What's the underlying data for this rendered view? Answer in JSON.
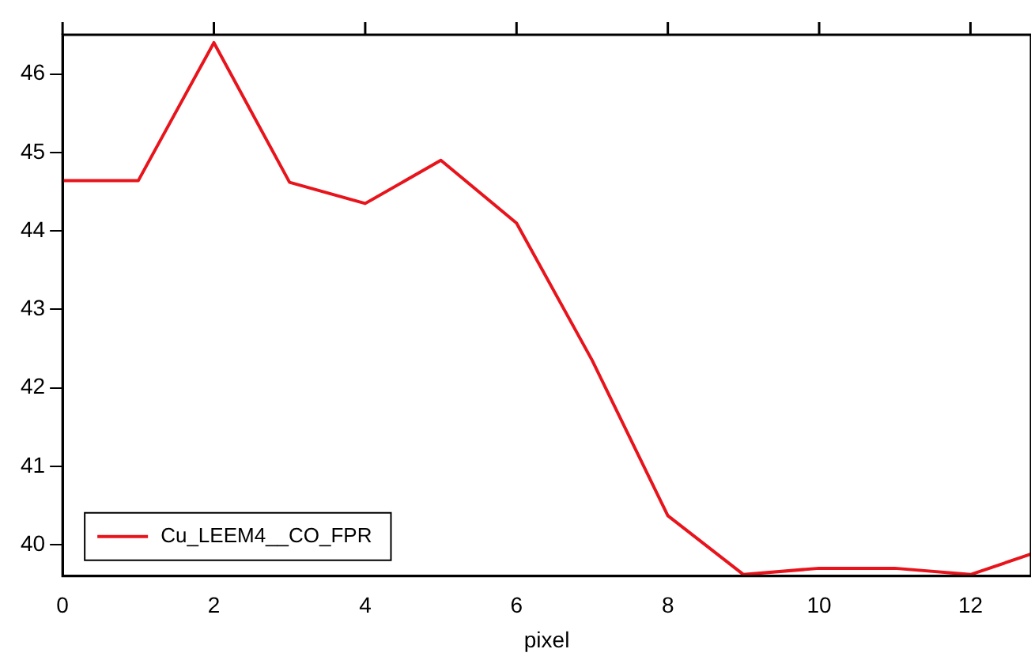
{
  "chart_data": {
    "type": "line",
    "xlabel": "pixel",
    "x": [
      0,
      1,
      2,
      3,
      4,
      5,
      6,
      7,
      8,
      9,
      10,
      11,
      12,
      12.8
    ],
    "series": [
      {
        "name": "Cu_LEEM4__CO_FPR",
        "color": "#e8141c",
        "values": [
          44.64,
          44.64,
          46.4,
          44.62,
          44.35,
          44.9,
          44.1,
          42.35,
          40.37,
          39.62,
          39.7,
          39.7,
          39.62,
          39.88
        ]
      }
    ],
    "xlim": [
      0,
      12.8
    ],
    "xticks": [
      0,
      2,
      4,
      6,
      8,
      10,
      12
    ],
    "ylim": [
      39.6,
      46.5
    ],
    "yticks": [
      40,
      41,
      42,
      43,
      44,
      45,
      46
    ],
    "grid": false,
    "legend": "bottom left",
    "marker": "none",
    "line_style": "solid"
  }
}
